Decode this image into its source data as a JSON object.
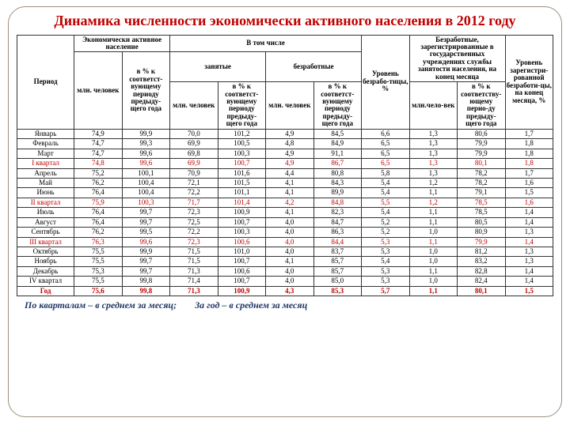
{
  "title": "Динамика численности экономически активного населения в 2012 году",
  "headers": {
    "period": "Период",
    "econ_active": "Экономически активное население",
    "including": "В том числе",
    "employed": "занятые",
    "unemployed": "безработные",
    "mln": "млн. человек",
    "pct_prev": "в % к соответст-вующему периоду предыду-щего года",
    "unemp_rate": "Уровень безрабо-тицы, %",
    "registered": "Безработные, зарегистрированные в государственных учреждениях службы занятости населения, на конец месяца",
    "reg_mln": "млн.чело-век",
    "reg_pct": "в % к соответству-ющему перио-ду предыду-щего года",
    "reg_level": "Уровень зарегистри-рованной безработи-цы, на конец месяца, %"
  },
  "rows": [
    {
      "period": "Январь",
      "cls": "",
      "v": [
        "74,9",
        "99,9",
        "70,0",
        "101,2",
        "4,9",
        "84,5",
        "6,6",
        "1,3",
        "80,6",
        "1,7"
      ]
    },
    {
      "period": "Февраль",
      "cls": "",
      "v": [
        "74,7",
        "99,3",
        "69,9",
        "100,5",
        "4,8",
        "84,9",
        "6,5",
        "1,3",
        "79,9",
        "1,8"
      ]
    },
    {
      "period": "Март",
      "cls": "",
      "v": [
        "74,7",
        "99,6",
        "69,8",
        "100,3",
        "4,9",
        "91,1",
        "6,5",
        "1,3",
        "79,9",
        "1,8"
      ]
    },
    {
      "period": "I квартал",
      "cls": "red",
      "v": [
        "74,8",
        "99,6",
        "69,9",
        "100,7",
        "4,9",
        "86,7",
        "6,5",
        "1,3",
        "80,1",
        "1,8"
      ]
    },
    {
      "period": "Апрель",
      "cls": "",
      "v": [
        "75,2",
        "100,1",
        "70,9",
        "101,6",
        "4,4",
        "80,8",
        "5,8",
        "1,3",
        "78,2",
        "1,7"
      ]
    },
    {
      "period": "Май",
      "cls": "",
      "v": [
        "76,2",
        "100,4",
        "72,1",
        "101,5",
        "4,1",
        "84,3",
        "5,4",
        "1,2",
        "78,2",
        "1,6"
      ]
    },
    {
      "period": "Июнь",
      "cls": "",
      "v": [
        "76,4",
        "100,4",
        "72,2",
        "101,1",
        "4,1",
        "89,9",
        "5,4",
        "1,1",
        "79,1",
        "1,5"
      ]
    },
    {
      "period": "II квартал",
      "cls": "red",
      "v": [
        "75,9",
        "100,3",
        "71,7",
        "101,4",
        "4,2",
        "84,8",
        "5,5",
        "1,2",
        "78,5",
        "1,6"
      ]
    },
    {
      "period": "Июль",
      "cls": "",
      "v": [
        "76,4",
        "99,7",
        "72,3",
        "100,9",
        "4,1",
        "82,3",
        "5,4",
        "1,1",
        "78,5",
        "1,4"
      ]
    },
    {
      "period": "Август",
      "cls": "",
      "v": [
        "76,4",
        "99,7",
        "72,5",
        "100,7",
        "4,0",
        "84,7",
        "5,2",
        "1,1",
        "80,5",
        "1,4"
      ]
    },
    {
      "period": "Сентябрь",
      "cls": "",
      "v": [
        "76,2",
        "99,5",
        "72,2",
        "100,3",
        "4,0",
        "86,3",
        "5,2",
        "1,0",
        "80,9",
        "1,3"
      ]
    },
    {
      "period": "III квартал",
      "cls": "red",
      "v": [
        "76,3",
        "99,6",
        "72,3",
        "100,6",
        "4,0",
        "84,4",
        "5,3",
        "1,1",
        "79,9",
        "1,4"
      ]
    },
    {
      "period": "Октябрь",
      "cls": "",
      "v": [
        "75,5",
        "99,9",
        "71,5",
        "101,0",
        "4,0",
        "83,7",
        "5,3",
        "1,0",
        "81,2",
        "1,3"
      ]
    },
    {
      "period": "Ноябрь",
      "cls": "",
      "v": [
        "75,5",
        "99,7",
        "71,5",
        "100,7",
        "4,1",
        "85,7",
        "5,4",
        "1,0",
        "83,2",
        "1,3"
      ]
    },
    {
      "period": "Декабрь",
      "cls": "",
      "v": [
        "75,3",
        "99,7",
        "71,3",
        "100,6",
        "4,0",
        "85,7",
        "5,3",
        "1,1",
        "82,8",
        "1,4"
      ]
    },
    {
      "period": "IV квартал",
      "cls": "",
      "v": [
        "75,5",
        "99,8",
        "71,4",
        "100,7",
        "4,0",
        "85,0",
        "5,3",
        "1,0",
        "82,4",
        "1,4"
      ]
    },
    {
      "period": "Год",
      "cls": "red-bold",
      "v": [
        "75,6",
        "99,8",
        "71,3",
        "100,9",
        "4,3",
        "85,3",
        "5,7",
        "1,1",
        "80,1",
        "1,5"
      ]
    }
  ],
  "footnote": {
    "a": "По кварталам – в среднем за месяц;",
    "b": "За год – в среднем за месяц"
  },
  "colors": {
    "title": "#c00000",
    "red": "#c00000",
    "footnote": "#1f3864",
    "border": "#333333",
    "frame_border": "#9b8f7a",
    "background": "#ffffff"
  },
  "fontsizes": {
    "title": 18,
    "table": 9,
    "footnote": 12
  }
}
